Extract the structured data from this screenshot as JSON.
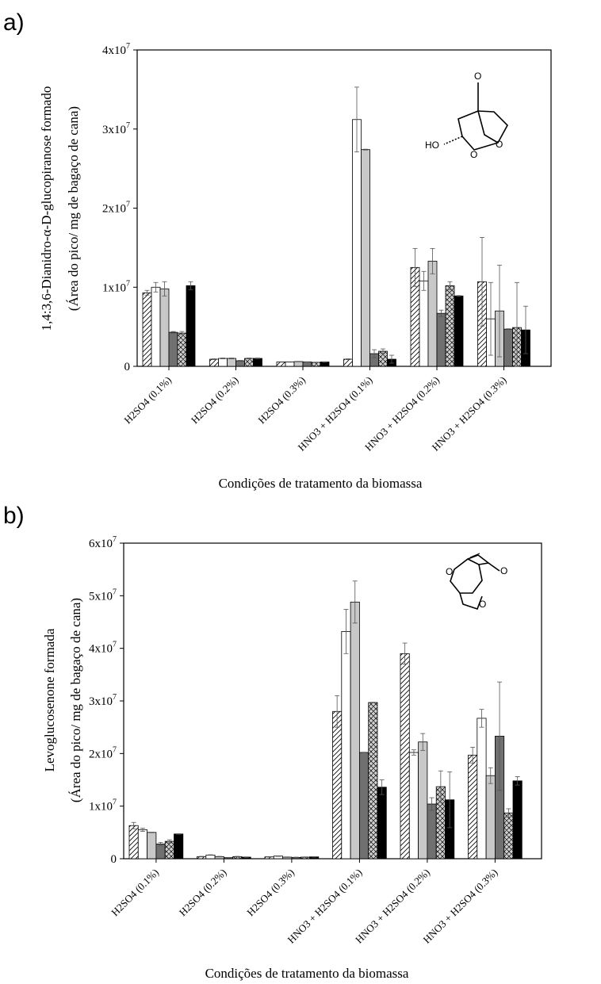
{
  "chart_data": [
    {
      "type": "bar",
      "panel_label": "a)",
      "ylabel_line1": "1,4:3,6-Dianidro-α-D-glucopiranose formado",
      "ylabel_line2": "(Área do pico/ mg de bagaço de cana)",
      "xlabel": "Condições de tratamento da biomassa",
      "ylim": [
        0,
        40000000
      ],
      "yticks": [
        {
          "value": 0,
          "label": "0"
        },
        {
          "value": 10000000,
          "label": "1x10",
          "exp": "7"
        },
        {
          "value": 20000000,
          "label": "2x10",
          "exp": "7"
        },
        {
          "value": 30000000,
          "label": "3x10",
          "exp": "7"
        },
        {
          "value": 40000000,
          "label": "4x10",
          "exp": "7"
        }
      ],
      "categories": [
        "H2SO4 (0.1%)",
        "H2SO4 (0.2%)",
        "H2SO4 (0.3%)",
        "HNO3 + H2SO4 (0.1%)",
        "HNO3 + H2SO4 (0.2%)",
        "HNO3 + H2SO4 (0.3%)"
      ],
      "series": [
        {
          "fill": "diagonal-hatch",
          "values": [
            9300000,
            900000,
            550000,
            900000,
            12500000,
            10700000
          ],
          "errors": [
            300000,
            50000,
            30000,
            50000,
            2400000,
            5600000
          ]
        },
        {
          "fill": "#ffffff",
          "values": [
            10000000,
            1000000,
            550000,
            31200000,
            10800000,
            6000000
          ],
          "errors": [
            600000,
            50000,
            30000,
            4100000,
            1200000,
            4600000
          ]
        },
        {
          "fill": "#c8c8c8",
          "values": [
            9800000,
            1000000,
            600000,
            27400000,
            13300000,
            7000000
          ],
          "errors": [
            900000,
            50000,
            30000,
            50000,
            1600000,
            5800000
          ]
        },
        {
          "fill": "#707070",
          "values": [
            4300000,
            700000,
            550000,
            1600000,
            6700000,
            4700000
          ],
          "errors": [
            100000,
            50000,
            30000,
            500000,
            400000,
            50000
          ]
        },
        {
          "fill": "cross-hatch",
          "values": [
            4200000,
            1000000,
            500000,
            1900000,
            10200000,
            4900000
          ],
          "errors": [
            200000,
            50000,
            30000,
            300000,
            500000,
            5700000
          ]
        },
        {
          "fill": "#000000",
          "values": [
            10200000,
            1000000,
            550000,
            900000,
            8900000,
            4600000
          ],
          "errors": [
            500000,
            50000,
            30000,
            500000,
            50000,
            3000000
          ]
        }
      ]
    },
    {
      "type": "bar",
      "panel_label": "b)",
      "ylabel_line1": "Levoglucosenone formada",
      "ylabel_line2": "(Área do pico/ mg de bagaço de cana)",
      "xlabel": "Condições de tratamento da biomassa",
      "ylim": [
        0,
        60000000
      ],
      "yticks": [
        {
          "value": 0,
          "label": "0"
        },
        {
          "value": 10000000,
          "label": "1x10",
          "exp": "7"
        },
        {
          "value": 20000000,
          "label": "2x10",
          "exp": "7"
        },
        {
          "value": 30000000,
          "label": "3x10",
          "exp": "7"
        },
        {
          "value": 40000000,
          "label": "4x10",
          "exp": "7"
        },
        {
          "value": 50000000,
          "label": "5x10",
          "exp": "7"
        },
        {
          "value": 60000000,
          "label": "6x10",
          "exp": "7"
        }
      ],
      "categories": [
        "H2SO4 (0.1%)",
        "H2SO4 (0.2%)",
        "H2SO4 (0.3%)",
        "HNO3 + H2SO4 (0.1%)",
        "HNO3 + H2SO4 (0.2%)",
        "HNO3 + H2SO4 (0.3%)"
      ],
      "series": [
        {
          "fill": "diagonal-hatch",
          "values": [
            6300000,
            400000,
            350000,
            28000000,
            39000000,
            19700000
          ],
          "errors": [
            600000,
            50000,
            50000,
            3000000,
            2000000,
            1500000
          ]
        },
        {
          "fill": "#ffffff",
          "values": [
            5500000,
            700000,
            500000,
            43200000,
            20200000,
            26700000
          ],
          "errors": [
            300000,
            50000,
            50000,
            4200000,
            500000,
            1700000
          ]
        },
        {
          "fill": "#c8c8c8",
          "values": [
            5000000,
            400000,
            300000,
            48800000,
            22200000,
            15800000
          ],
          "errors": [
            50000,
            50000,
            50000,
            4000000,
            1600000,
            1500000
          ]
        },
        {
          "fill": "#707070",
          "values": [
            2800000,
            200000,
            250000,
            20200000,
            10400000,
            23300000
          ],
          "errors": [
            300000,
            50000,
            50000,
            50000,
            1200000,
            10300000
          ]
        },
        {
          "fill": "cross-hatch",
          "values": [
            3300000,
            400000,
            300000,
            29700000,
            13700000,
            8700000
          ],
          "errors": [
            300000,
            50000,
            50000,
            50000,
            3000000,
            800000
          ]
        },
        {
          "fill": "#000000",
          "values": [
            4700000,
            300000,
            350000,
            13600000,
            11200000,
            14800000
          ],
          "errors": [
            50000,
            50000,
            50000,
            1400000,
            5300000,
            800000
          ]
        }
      ]
    }
  ],
  "molecules": {
    "a": {
      "label_o_top": "O",
      "label_ho": "HO",
      "label_o_left": "O",
      "label_o_right": "O"
    },
    "b": {
      "label_o_left": "O",
      "label_o_ketone": "O",
      "label_o_ring": "O"
    }
  }
}
